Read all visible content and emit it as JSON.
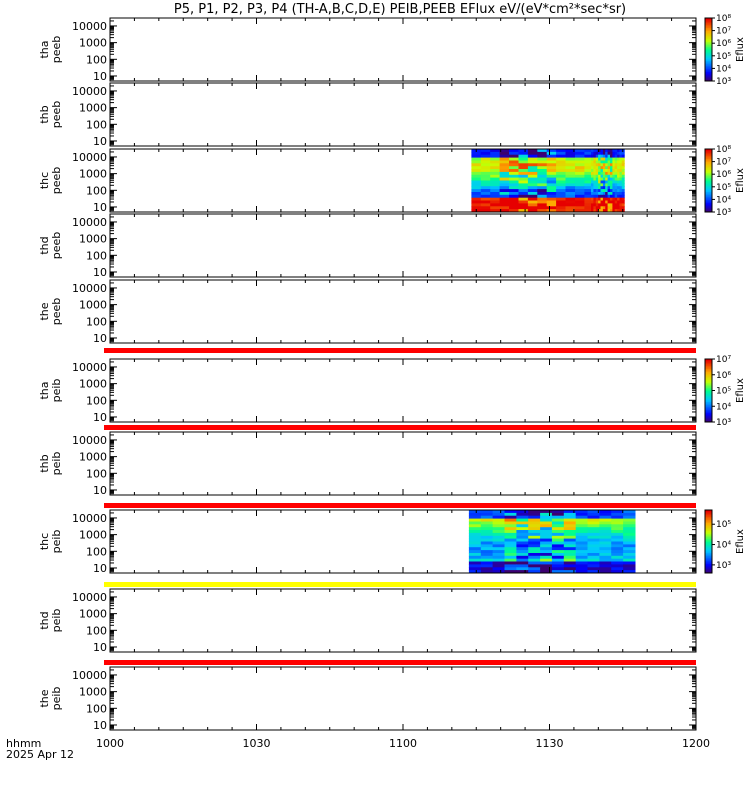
{
  "chart_data": {
    "type": "heatmap",
    "title": "P5, P1, P2, P3, P4 (TH-A,B,C,D,E) PEIB,PEEB EFlux eV/(eV*cm²*sec*sr)",
    "x_axis": {
      "label_line1": "hhmm",
      "label_line2": "2025 Apr 12",
      "range": [
        "10:00",
        "12:00"
      ],
      "tick_labels": [
        "1000",
        "1030",
        "1100",
        "1130",
        "1200"
      ],
      "tick_minutes": [
        0,
        30,
        60,
        90,
        120
      ]
    },
    "y_tick_labels": [
      "10",
      "100",
      "1000",
      "10000"
    ],
    "y_tick_values": [
      10,
      100,
      1000,
      10000
    ],
    "y_range": [
      5,
      30000
    ],
    "y_scale": "log",
    "colors": {
      "red_bar": "#ff0000",
      "yellow_bar": "#ffff00",
      "black": "#000000"
    },
    "panels": [
      {
        "probe": "tha",
        "inst": "peeb",
        "colorbar": {
          "label": "Eflux",
          "tick_labels": [
            "10³",
            "10⁴",
            "10⁵",
            "10⁶",
            "10⁷",
            "10⁸"
          ],
          "decades": [
            3,
            8
          ]
        },
        "data_intervals": [],
        "status_bar": null
      },
      {
        "probe": "thb",
        "inst": "peeb",
        "colorbar": null,
        "data_intervals": [],
        "status_bar": null
      },
      {
        "probe": "thc",
        "inst": "peeb",
        "colorbar": {
          "label": "Eflux",
          "tick_labels": [
            "10³",
            "10⁴",
            "10⁵",
            "10⁶",
            "10⁷",
            "10⁸"
          ],
          "decades": [
            3,
            8
          ]
        },
        "data_intervals": [
          [
            74,
            101
          ],
          [
            98.5,
            105.3
          ]
        ],
        "status_bar": null
      },
      {
        "probe": "thd",
        "inst": "peeb",
        "colorbar": null,
        "data_intervals": [],
        "status_bar": null
      },
      {
        "probe": "the",
        "inst": "peeb",
        "colorbar": null,
        "data_intervals": [],
        "status_bar": "red_bar"
      },
      {
        "probe": "tha",
        "inst": "peib",
        "colorbar": {
          "label": "Eflux",
          "tick_labels": [
            "10³",
            "10⁴",
            "10⁵",
            "10⁶",
            "10⁷"
          ],
          "decades": [
            3,
            7
          ]
        },
        "data_intervals": [],
        "status_bar": "red_bar"
      },
      {
        "probe": "thb",
        "inst": "peib",
        "colorbar": null,
        "data_intervals": [],
        "status_bar": "red_bar"
      },
      {
        "probe": "thc",
        "inst": "peib",
        "colorbar": {
          "label": "Eflux",
          "tick_labels": [
            "10³",
            "10⁴",
            "10⁵"
          ],
          "decades": [
            2.6,
            5.7
          ]
        },
        "data_intervals": [
          [
            73.5,
            107.5
          ]
        ],
        "status_bar": "yellow_bar"
      },
      {
        "probe": "thd",
        "inst": "peib",
        "colorbar": null,
        "data_intervals": [],
        "status_bar": "red_bar"
      },
      {
        "probe": "the",
        "inst": "peib",
        "colorbar": null,
        "data_intervals": [],
        "status_bar": null
      }
    ]
  }
}
